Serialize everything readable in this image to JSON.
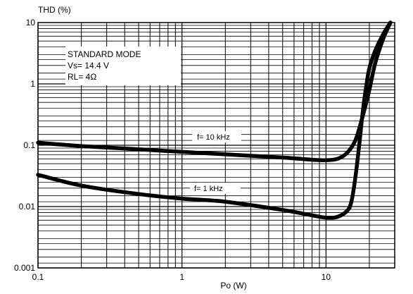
{
  "chart_data": {
    "type": "line",
    "xscale": "log",
    "yscale": "log",
    "xlim": [
      0.1,
      30
    ],
    "ylim": [
      0.001,
      10
    ],
    "xlabel": "Po (W)",
    "ylabel": "THD (%)",
    "xticks": [
      {
        "value": 0.1,
        "label": "0.1"
      },
      {
        "value": 1,
        "label": "1"
      },
      {
        "value": 10,
        "label": "10"
      }
    ],
    "yticks": [
      {
        "value": 0.001,
        "label": "0.001"
      },
      {
        "value": 0.01,
        "label": "0.01"
      },
      {
        "value": 0.1,
        "label": "0.1"
      },
      {
        "value": 1,
        "label": "1"
      },
      {
        "value": 10,
        "label": "10"
      }
    ],
    "grid": true,
    "conditions": [
      "STANDARD MODE",
      "Vs= 14.4 V",
      "RL= 4Ω"
    ],
    "series": [
      {
        "name": "f= 10 kHz",
        "color": "#000000",
        "x": [
          0.1,
          0.2,
          0.5,
          1,
          2,
          5,
          8,
          10,
          12,
          14,
          16,
          18,
          20,
          22,
          25,
          28
        ],
        "y": [
          0.11,
          0.097,
          0.086,
          0.078,
          0.071,
          0.063,
          0.058,
          0.057,
          0.06,
          0.075,
          0.12,
          0.3,
          0.8,
          2.2,
          5.5,
          10
        ]
      },
      {
        "name": "f= 1 kHz",
        "color": "#000000",
        "x": [
          0.1,
          0.2,
          0.5,
          1,
          2,
          5,
          8,
          10,
          12,
          14,
          15,
          16,
          17,
          18,
          19,
          20,
          22,
          25,
          28
        ],
        "y": [
          0.033,
          0.022,
          0.016,
          0.0135,
          0.012,
          0.0088,
          0.0072,
          0.0066,
          0.0068,
          0.0085,
          0.012,
          0.03,
          0.1,
          0.35,
          0.9,
          1.8,
          3.5,
          6.5,
          10
        ]
      }
    ]
  }
}
